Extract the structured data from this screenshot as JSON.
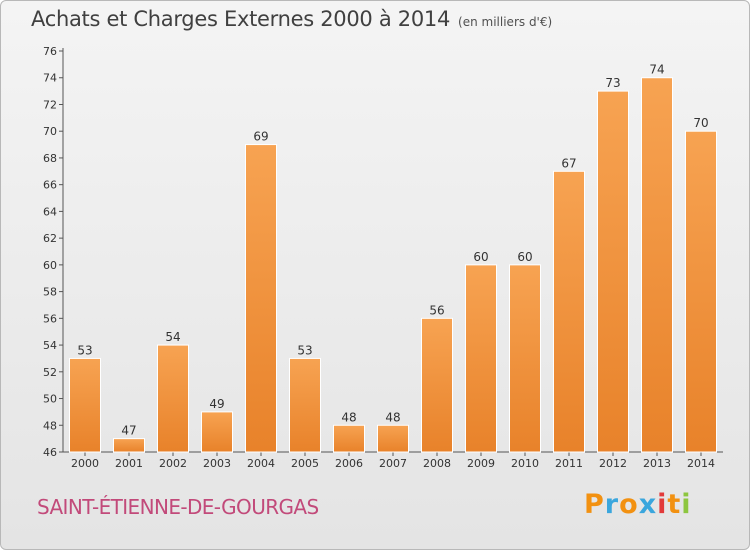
{
  "chart_data": {
    "type": "bar",
    "title": "Achats et Charges Externes 2000 à 2014",
    "subtitle": "(en milliers d'€)",
    "categories": [
      "2000",
      "2001",
      "2002",
      "2003",
      "2004",
      "2005",
      "2006",
      "2007",
      "2008",
      "2009",
      "2010",
      "2011",
      "2012",
      "2013",
      "2014"
    ],
    "values": [
      53,
      47,
      54,
      49,
      69,
      53,
      48,
      48,
      56,
      60,
      60,
      67,
      73,
      74,
      70
    ],
    "ylim": [
      46,
      76
    ],
    "yticks": [
      46,
      48,
      50,
      52,
      54,
      56,
      58,
      60,
      62,
      64,
      66,
      68,
      70,
      72,
      74,
      76
    ],
    "grid": false,
    "bar_color": "#e8822a",
    "bar_color_light": "#f7a352"
  },
  "location": "SAINT-ÉTIENNE-DE-GOURGAS",
  "brand": {
    "letters": [
      "P",
      "r",
      "o",
      "x",
      "i",
      "t",
      "i"
    ],
    "colors": [
      "#f29111",
      "#3aa6dd",
      "#f29111",
      "#3aa6dd",
      "#e23a3a",
      "#f29111",
      "#8dc63f"
    ]
  }
}
